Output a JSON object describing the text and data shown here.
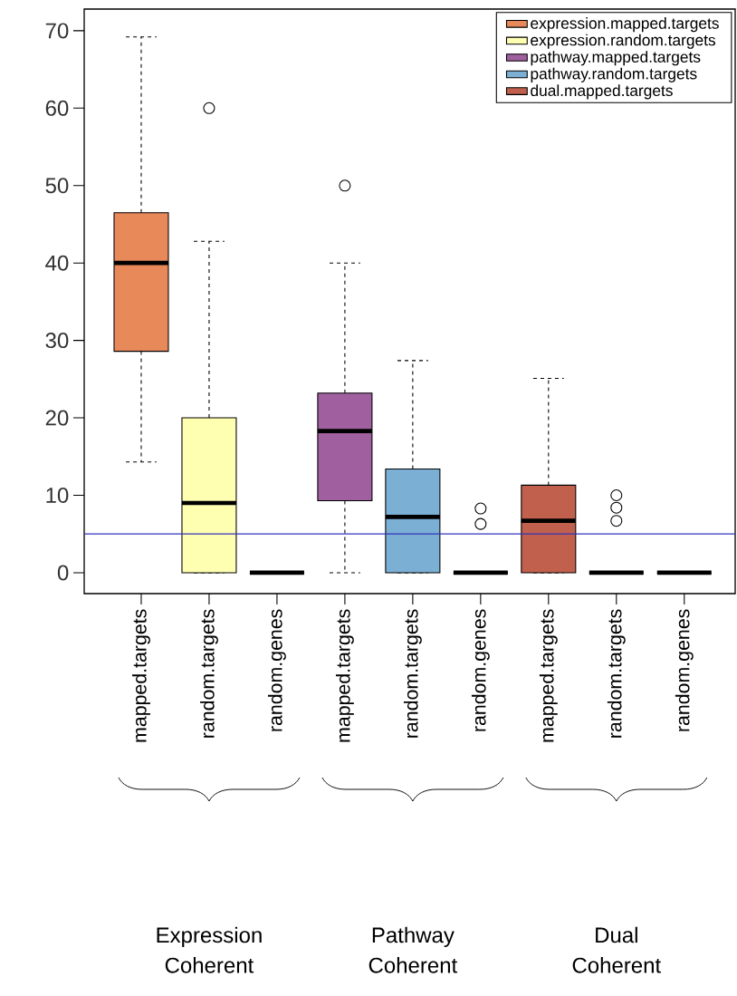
{
  "chart_data": {
    "type": "box",
    "categories": [
      "mapped.targets",
      "random.targets",
      "random.genes",
      "mapped.targets",
      "random.targets",
      "random.genes",
      "mapped.targets",
      "random.targets",
      "random.genes"
    ],
    "series": [
      {
        "name": "expression.mapped.targets",
        "color": "#e8895a",
        "boxes": [
          {
            "low": 14.3,
            "q1": 28.6,
            "median": 40,
            "q3": 46.5,
            "high": 69.2
          },
          null,
          null,
          null,
          null,
          null,
          null,
          null,
          null
        ]
      },
      {
        "name": "expression.random.targets",
        "color": "#ffffb2",
        "boxes": [
          null,
          {
            "low": 0,
            "q1": 0,
            "median": 9,
            "q3": 20,
            "high": 42.8,
            "outliers": [
              60
            ]
          },
          null,
          null,
          null,
          null,
          null,
          null,
          null
        ]
      },
      {
        "name": "pathway.mapped.targets",
        "color": "#a0609f",
        "boxes": [
          null,
          null,
          null,
          {
            "low": 0,
            "q1": 9.3,
            "median": 18.3,
            "q3": 23.2,
            "high": 40,
            "outliers": [
              50
            ]
          },
          null,
          null,
          null,
          null,
          null
        ]
      },
      {
        "name": "pathway.random.targets",
        "color": "#7bafd4",
        "boxes": [
          null,
          null,
          null,
          null,
          {
            "low": 0,
            "q1": 0,
            "median": 7.2,
            "q3": 13.4,
            "high": 27.4
          },
          null,
          null,
          null,
          null
        ]
      },
      {
        "name": "dual.mapped.targets",
        "color": "#c0604d",
        "boxes": [
          null,
          null,
          null,
          null,
          null,
          null,
          {
            "low": 0,
            "q1": 0,
            "median": 6.7,
            "q3": 11.3,
            "high": 25.1
          },
          null,
          null
        ]
      },
      {
        "color": "#000000",
        "boxes": [
          null,
          null,
          {
            "low": 0,
            "q1": 0,
            "median": 0,
            "q3": 0,
            "high": 0
          },
          null,
          null,
          {
            "low": 0,
            "q1": 0,
            "median": 0,
            "q3": 0,
            "high": 0,
            "outliers": [
              8.3,
              6.3
            ]
          },
          null,
          {
            "low": 0,
            "q1": 0,
            "median": 0,
            "q3": 0,
            "high": 0,
            "outliers": [
              10,
              8.4,
              6.7
            ]
          },
          {
            "low": 0,
            "q1": 0,
            "median": 0,
            "q3": 0,
            "high": 0
          }
        ]
      }
    ],
    "ylim": [
      -2.7,
      72.8
    ],
    "yticks": [
      0,
      10,
      20,
      30,
      40,
      50,
      60,
      70
    ],
    "ref_lines": [
      {
        "axis": "y",
        "value": 5,
        "color": "#3333bb"
      }
    ],
    "legend": "top right",
    "annotations": [
      "Expression Coherent",
      "Pathway Coherent",
      "Dual Coherent"
    ]
  }
}
